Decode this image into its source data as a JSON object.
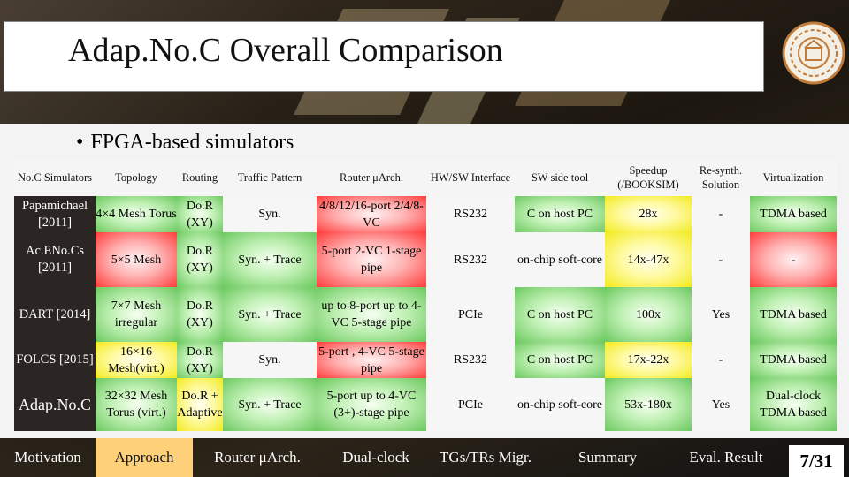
{
  "slide": {
    "title": "Adap.No.C Overall Comparison",
    "bullet": "FPGA-based simulators",
    "page": "7/31"
  },
  "table": {
    "headers": [
      "No.C Simulators",
      "Topology",
      "Routing",
      "Traffic Pattern",
      "Router μArch.",
      "HW/SW Interface",
      "SW side tool",
      "Speedup (/BOOKSIM)",
      "Re-synth. Solution",
      "Virtualization"
    ],
    "rows": [
      [
        "Papamichael [2011]",
        "4×4 Mesh Torus",
        "Do.R (XY)",
        "Syn.",
        "4/8/12/16-port 2/4/8-VC",
        "RS232",
        "C on host PC",
        "28x",
        "-",
        "TDMA based"
      ],
      [
        "Ac.ENo.Cs [2011]",
        "5×5 Mesh",
        "Do.R (XY)",
        "Syn. + Trace",
        "5-port 2-VC 1-stage pipe",
        "RS232",
        "on-chip soft-core",
        "14x-47x",
        "-",
        "-"
      ],
      [
        "DART [2014]",
        "7×7 Mesh irregular",
        "Do.R (XY)",
        "Syn. + Trace",
        "up to 8-port up to 4-VC 5-stage pipe",
        "PCIe",
        "C on host PC",
        "100x",
        "Yes",
        "TDMA based"
      ],
      [
        "FOLCS [2015]",
        "16×16 Mesh(virt.)",
        "Do.R (XY)",
        "Syn.",
        "5-port , 4-VC 5-stage pipe",
        "RS232",
        "C on host PC",
        "17x-22x",
        "-",
        "TDMA based"
      ],
      [
        "Adap.No.C",
        "32×32 Mesh Torus (virt.)",
        "Do.R + Adaptive",
        "Syn. + Trace",
        "5-port up to 4-VC (3+)-stage pipe",
        "PCIe",
        "on-chip soft-core",
        "53x-180x",
        "Yes",
        "Dual-clock TDMA based"
      ]
    ]
  },
  "nav": {
    "items": [
      "Motivation",
      "Approach",
      "Router μArch.",
      "Dual-clock",
      "TGs/TRs Migr.",
      "Summary",
      "Eval. Result"
    ],
    "active": "Approach"
  },
  "colors": {
    "good": "#6cc860",
    "bad": "#ff3c3c",
    "medium": "#f2ea1e",
    "nav_active": "#ffd07a"
  },
  "icons": {
    "logo": "university-seal-icon"
  }
}
